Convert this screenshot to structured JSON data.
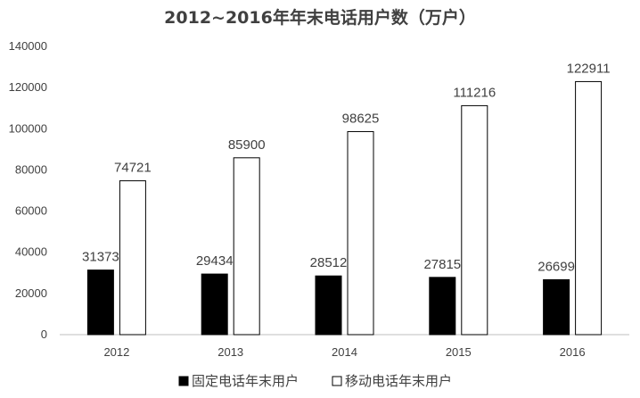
{
  "chart_data": {
    "type": "bar",
    "title": "2012~2016年年末电话用户数（万户）",
    "xlabel": "",
    "ylabel": "",
    "categories": [
      "2012",
      "2013",
      "2014",
      "2015",
      "2016"
    ],
    "series": [
      {
        "name": "固定电话年末用户",
        "values": [
          31373,
          29434,
          28512,
          27815,
          26699
        ],
        "fill": "#000000",
        "stroke": "#000000"
      },
      {
        "name": "移动电话年末用户",
        "values": [
          74721,
          85900,
          98625,
          111216,
          122911
        ],
        "fill": "#ffffff",
        "stroke": "#000000"
      }
    ],
    "ylim": [
      0,
      140000
    ],
    "yticks": [
      0,
      20000,
      40000,
      60000,
      80000,
      100000,
      120000,
      140000
    ],
    "data_labels": true,
    "grid": false,
    "legend_position": "bottom"
  }
}
